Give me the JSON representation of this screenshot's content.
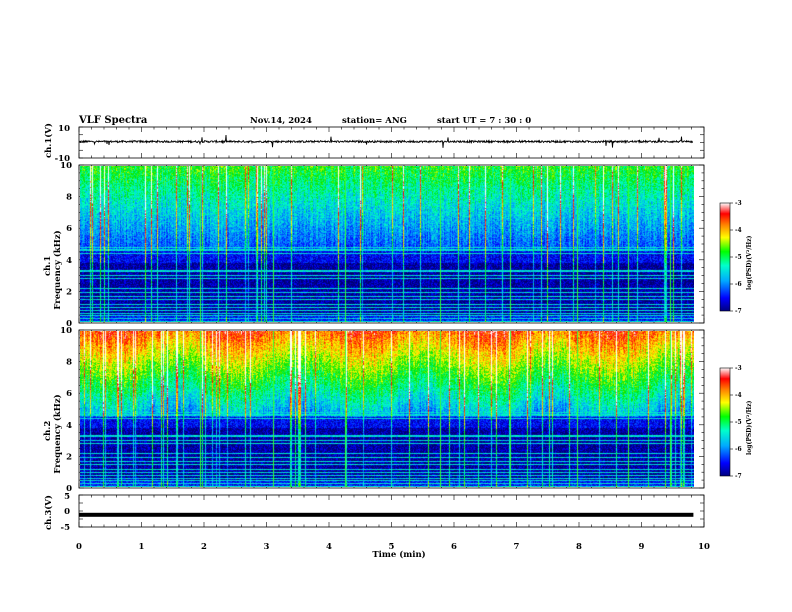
{
  "header": {
    "title": "VLF Spectra",
    "date": "Nov.14, 2024",
    "station": "station= ANG",
    "start": "start  UT  =   7  : 30 : 0"
  },
  "chart_data": [
    {
      "type": "line",
      "panel": "ch.1(V)",
      "ylabel": "ch.1(V)",
      "ylim": [
        -10,
        10
      ],
      "yticks": [
        10,
        -10
      ],
      "xlim": [
        0,
        10
      ],
      "description_level": 0.6,
      "note": "waveform trace near constant level with small spikes",
      "color": "#000000"
    },
    {
      "type": "heatmap",
      "panel": "ch.1",
      "ylabel": [
        "ch.1",
        "Frequency  (kHz)"
      ],
      "ylim": [
        0,
        10
      ],
      "yticks": [
        0,
        2,
        4,
        6,
        8,
        10
      ],
      "xlim": [
        0,
        9.83
      ],
      "colorbar": {
        "label": "log(PSD)(V²/Hz)",
        "range": [
          -7,
          -3
        ],
        "ticks": [
          -3,
          -4,
          -5,
          -6,
          -7
        ]
      },
      "intensity": 0.0
    },
    {
      "type": "heatmap",
      "panel": "ch.2",
      "ylabel": [
        "ch.2",
        "Frequency  (kHz)"
      ],
      "ylim": [
        0,
        10
      ],
      "yticks": [
        0,
        2,
        4,
        6,
        8,
        10
      ],
      "xlim": [
        0,
        9.83
      ],
      "colorbar": {
        "label": "log(PSD)(V²/Hz)",
        "range": [
          -7,
          -3
        ],
        "ticks": [
          -3,
          -4,
          -5,
          -6,
          -7
        ]
      },
      "intensity": 1.0
    },
    {
      "type": "line",
      "panel": "ch.3(V)",
      "ylabel": "ch.3(V)",
      "ylim": [
        -5,
        5
      ],
      "yticks": [
        5,
        0,
        -5
      ],
      "xlim": [
        0,
        9.83
      ],
      "level": -1.2,
      "color": "#000000"
    }
  ],
  "xaxis": {
    "label": "Time  (min)",
    "range": [
      0,
      10
    ],
    "ticks": [
      "0",
      "1",
      "2",
      "3",
      "4",
      "5",
      "6",
      "7",
      "8",
      "9",
      "10"
    ]
  }
}
